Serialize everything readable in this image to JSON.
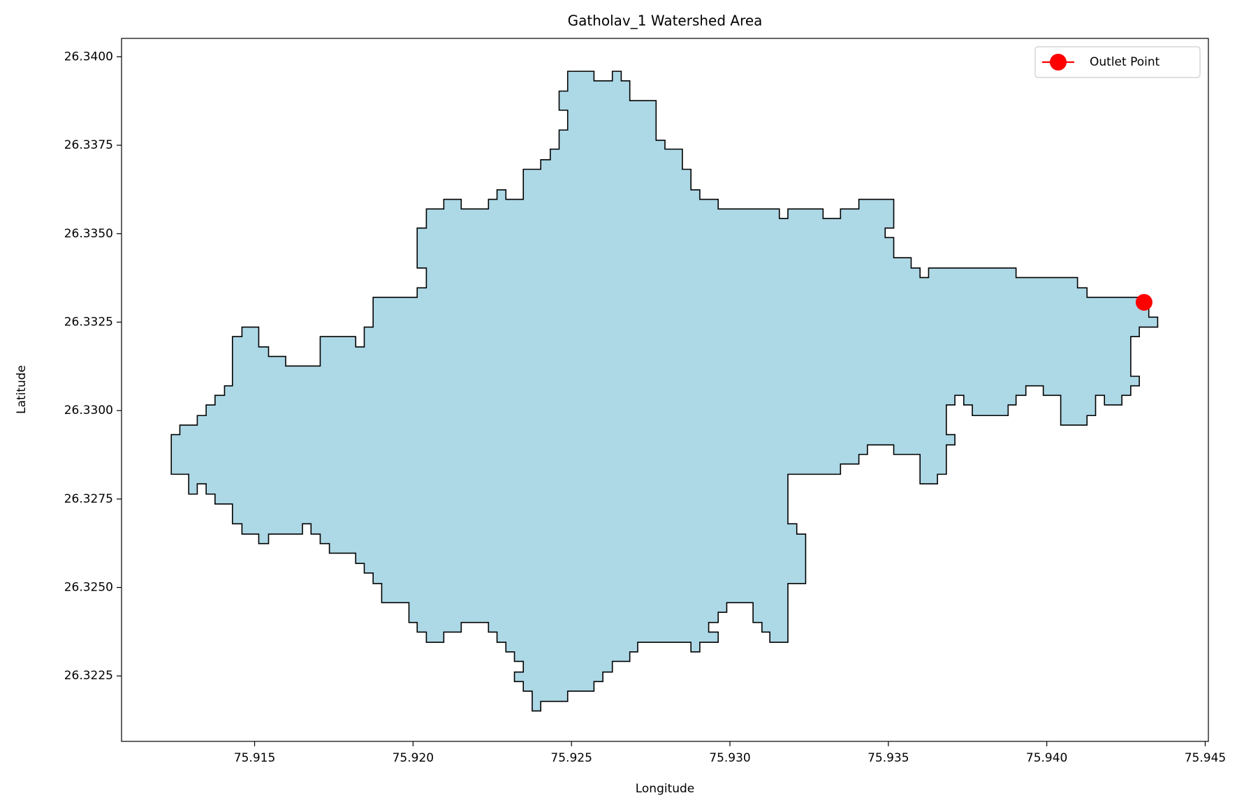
{
  "chart_data": {
    "type": "polygon",
    "title": "Gatholav_1 Watershed Area",
    "xlabel": "Longitude",
    "ylabel": "Latitude",
    "xlim": [
      75.9108,
      75.9451
    ],
    "ylim": [
      26.32065,
      26.34052
    ],
    "xticks": [
      75.915,
      {
        "value": 75.92,
        "label": "75.920"
      },
      75.925,
      {
        "value": 75.93,
        "label": "75.930"
      },
      75.935,
      {
        "value": 75.94,
        "label": "75.940"
      },
      75.945
    ],
    "yticks": [
      {
        "value": 26.34,
        "label": "26.3400"
      },
      26.3375,
      {
        "value": 26.335,
        "label": "26.3350"
      },
      26.3325,
      {
        "value": 26.33,
        "label": "26.3300"
      },
      26.3275,
      {
        "value": 26.325,
        "label": "26.3250"
      },
      26.3225
    ],
    "grid": false,
    "legend_loc": "upper right",
    "polygon": {
      "color": "#add8e6",
      "edgecolor": "#000000",
      "x": [
        75.92488,
        75.92571,
        75.92571,
        75.92629,
        75.92629,
        75.92657,
        75.92657,
        75.92684,
        75.92684,
        75.92767,
        75.92767,
        75.92795,
        75.92795,
        75.9285,
        75.9285,
        75.92877,
        75.92877,
        75.92905,
        75.92905,
        75.92963,
        75.92963,
        75.93156,
        75.93156,
        75.93183,
        75.93183,
        75.93294,
        75.93294,
        75.93349,
        75.93349,
        75.93407,
        75.93407,
        75.93517,
        75.93517,
        75.9349,
        75.9349,
        75.93517,
        75.93517,
        75.93572,
        75.93572,
        75.936,
        75.936,
        75.93627,
        75.93627,
        75.93903,
        75.93903,
        75.94097,
        75.94097,
        75.94127,
        75.94127,
        75.94292,
        75.94292,
        75.94322,
        75.94322,
        75.9435,
        75.9435,
        75.94292,
        75.94292,
        75.94265,
        75.94265,
        75.94292,
        75.94292,
        75.94265,
        75.94265,
        75.94237,
        75.94237,
        75.94182,
        75.94182,
        75.94154,
        75.94154,
        75.94127,
        75.94127,
        75.94044,
        75.94044,
        75.93989,
        75.93989,
        75.93934,
        75.93934,
        75.93903,
        75.93903,
        75.93878,
        75.93878,
        75.93765,
        75.93765,
        75.93738,
        75.93738,
        75.9371,
        75.9371,
        75.93683,
        75.93683,
        75.9371,
        75.9371,
        75.93683,
        75.93683,
        75.93655,
        75.93655,
        75.936,
        75.936,
        75.93517,
        75.93517,
        75.93434,
        75.93434,
        75.93407,
        75.93407,
        75.93349,
        75.93349,
        75.93183,
        75.93183,
        75.93211,
        75.93211,
        75.93239,
        75.93239,
        75.93183,
        75.93183,
        75.93126,
        75.93126,
        75.93101,
        75.93101,
        75.93073,
        75.93073,
        75.9299,
        75.9299,
        75.92963,
        75.92963,
        75.92933,
        75.92933,
        75.92963,
        75.92963,
        75.92905,
        75.92905,
        75.92877,
        75.92877,
        75.92709,
        75.92709,
        75.92684,
        75.92684,
        75.92629,
        75.92629,
        75.92599,
        75.92599,
        75.92571,
        75.92571,
        75.92488,
        75.92488,
        75.92403,
        75.92403,
        75.92376,
        75.92376,
        75.92348,
        75.92348,
        75.9232,
        75.9232,
        75.92348,
        75.92348,
        75.9232,
        75.9232,
        75.92293,
        75.92293,
        75.92265,
        75.92265,
        75.92238,
        75.92238,
        75.92152,
        75.92152,
        75.92097,
        75.92097,
        75.92042,
        75.92042,
        75.92013,
        75.92013,
        75.91987,
        75.91987,
        75.91901,
        75.91901,
        75.91874,
        75.91874,
        75.91846,
        75.91846,
        75.91819,
        75.91819,
        75.91736,
        75.91736,
        75.91707,
        75.91707,
        75.91678,
        75.91678,
        75.91651,
        75.91651,
        75.91544,
        75.91544,
        75.91513,
        75.91513,
        75.9146,
        75.9146,
        75.9143,
        75.9143,
        75.91375,
        75.91375,
        75.91347,
        75.91347,
        75.91319,
        75.91319,
        75.91292,
        75.91292,
        75.91237,
        75.91237,
        75.91264,
        75.91264,
        75.91319,
        75.91319,
        75.91347,
        75.91347,
        75.91375,
        75.91375,
        75.91405,
        75.91405,
        75.9143,
        75.9143,
        75.9146,
        75.9146,
        75.91513,
        75.91513,
        75.91544,
        75.91544,
        75.91598,
        75.91598,
        75.91707,
        75.91707,
        75.91819,
        75.91819,
        75.91846,
        75.91846,
        75.91874,
        75.91874,
        75.92013,
        75.92013,
        75.92042,
        75.92042,
        75.92013,
        75.92013,
        75.92042,
        75.92042,
        75.92097,
        75.92097,
        75.92152,
        75.92152,
        75.92238,
        75.92238,
        75.92265,
        75.92265,
        75.92293,
        75.92293,
        75.92348,
        75.92348,
        75.92403,
        75.92403,
        75.92433,
        75.92433,
        75.92461,
        75.92461,
        75.92488,
        75.92488,
        75.92461,
        75.92461,
        75.92488
      ],
      "y": [
        26.33959,
        26.33959,
        26.33932,
        26.33932,
        26.33959,
        26.33959,
        26.33932,
        26.33932,
        26.33876,
        26.33876,
        26.33764,
        26.33764,
        26.33739,
        26.33739,
        26.33682,
        26.33682,
        26.33624,
        26.33624,
        26.33597,
        26.33597,
        26.3357,
        26.3357,
        26.33543,
        26.33543,
        26.3357,
        26.3357,
        26.33543,
        26.33543,
        26.3357,
        26.3357,
        26.33597,
        26.33597,
        26.33516,
        26.33516,
        26.33489,
        26.33489,
        26.33432,
        26.33432,
        26.33403,
        26.33403,
        26.33376,
        26.33376,
        26.33403,
        26.33403,
        26.33376,
        26.33376,
        26.33347,
        26.33347,
        26.3332,
        26.3332,
        26.33291,
        26.33291,
        26.33264,
        26.33264,
        26.33236,
        26.33236,
        26.33209,
        26.33209,
        26.33097,
        26.33097,
        26.3307,
        26.3307,
        26.33043,
        26.33043,
        26.33016,
        26.33016,
        26.33043,
        26.33043,
        26.32986,
        26.32986,
        26.32959,
        26.32959,
        26.33043,
        26.33043,
        26.3307,
        26.3307,
        26.33043,
        26.33043,
        26.33016,
        26.33016,
        26.32986,
        26.32986,
        26.33016,
        26.33016,
        26.33043,
        26.33043,
        26.33016,
        26.33016,
        26.32932,
        26.32932,
        26.32903,
        26.32903,
        26.3282,
        26.3282,
        26.32793,
        26.32793,
        26.32876,
        26.32876,
        26.32903,
        26.32903,
        26.32876,
        26.32876,
        26.32849,
        26.32849,
        26.3282,
        26.3282,
        26.3268,
        26.3268,
        26.32651,
        26.32651,
        26.32511,
        26.32511,
        26.32345,
        26.32345,
        26.32374,
        26.32374,
        26.32401,
        26.32401,
        26.32457,
        26.32457,
        26.3243,
        26.3243,
        26.32401,
        26.32401,
        26.32374,
        26.32374,
        26.32345,
        26.32345,
        26.32318,
        26.32318,
        26.32345,
        26.32345,
        26.32318,
        26.32318,
        26.32291,
        26.32291,
        26.32261,
        26.32261,
        26.32234,
        26.32234,
        26.32207,
        26.32207,
        26.32178,
        26.32178,
        26.32151,
        26.32151,
        26.32207,
        26.32207,
        26.32234,
        26.32234,
        26.32261,
        26.32261,
        26.32291,
        26.32291,
        26.32318,
        26.32318,
        26.32345,
        26.32345,
        26.32374,
        26.32374,
        26.32401,
        26.32401,
        26.32374,
        26.32374,
        26.32345,
        26.32345,
        26.32374,
        26.32374,
        26.32401,
        26.32401,
        26.32457,
        26.32457,
        26.32511,
        26.32511,
        26.32541,
        26.32541,
        26.32568,
        26.32568,
        26.32597,
        26.32597,
        26.32624,
        26.32624,
        26.32651,
        26.32651,
        26.3268,
        26.3268,
        26.32651,
        26.32651,
        26.32624,
        26.32624,
        26.32651,
        26.32651,
        26.3268,
        26.3268,
        26.32736,
        26.32736,
        26.32764,
        26.32764,
        26.32793,
        26.32793,
        26.32764,
        26.32764,
        26.3282,
        26.3282,
        26.32932,
        26.32932,
        26.32959,
        26.32959,
        26.32986,
        26.32986,
        26.33016,
        26.33016,
        26.33043,
        26.33043,
        26.3307,
        26.3307,
        26.33209,
        26.33209,
        26.33236,
        26.33236,
        26.3318,
        26.3318,
        26.33153,
        26.33153,
        26.33126,
        26.33126,
        26.33209,
        26.33209,
        26.3318,
        26.3318,
        26.33236,
        26.33236,
        26.3332,
        26.3332,
        26.33347,
        26.33347,
        26.33403,
        26.33403,
        26.33516,
        26.33516,
        26.3357,
        26.3357,
        26.33597,
        26.33597,
        26.3357,
        26.3357,
        26.33597,
        26.33597,
        26.33624,
        26.33624,
        26.33597,
        26.33597,
        26.33682,
        26.33682,
        26.33709,
        26.33709,
        26.33739,
        26.33739,
        26.33793,
        26.33793,
        26.33849,
        26.33849,
        26.33903,
        26.33903
      ]
    },
    "series": [
      {
        "name": "Outlet Point",
        "color": "#ff0000",
        "x": [
          75.94307
        ],
        "values": [
          26.33306
        ]
      }
    ]
  }
}
